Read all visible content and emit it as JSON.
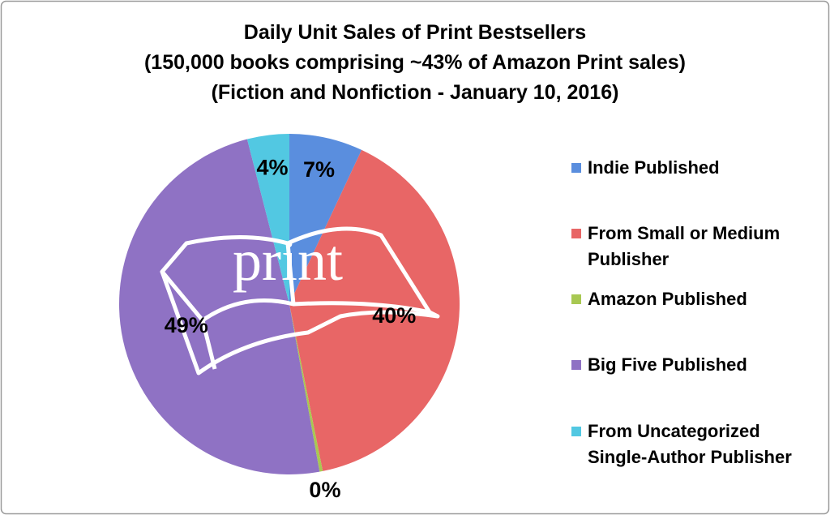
{
  "chart_data": {
    "type": "pie",
    "title": "Daily Unit Sales of Print Bestsellers",
    "subtitle": [
      "(150,000 books comprising ~43% of Amazon Print sales)",
      "(Fiction and Nonfiction - January 10, 2016)"
    ],
    "watermark": "print",
    "series": [
      {
        "name": "Daily Unit Sales",
        "categories": [
          "Indie Published",
          "From Small or Medium Publisher",
          "Amazon Published",
          "Big Five Published",
          "From Uncategorized Single-Author Publisher"
        ],
        "values": [
          7,
          40,
          0.3,
          49,
          4
        ],
        "value_labels": [
          "7%",
          "40%",
          "0%",
          "49%",
          "4%"
        ],
        "colors": [
          "#5a8ede",
          "#e86666",
          "#a8c852",
          "#8f72c4",
          "#52c8e2"
        ]
      }
    ],
    "legend": "right"
  }
}
